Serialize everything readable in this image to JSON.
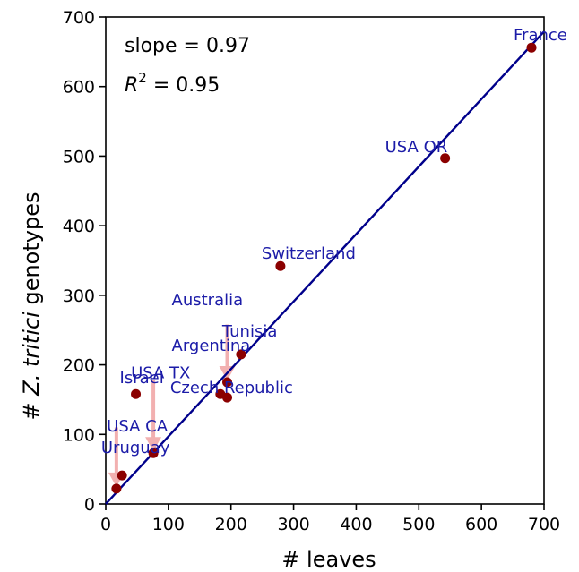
{
  "chart_data": {
    "type": "scatter",
    "title": "",
    "xlabel": "# leaves",
    "ylabel_prefix": "# ",
    "ylabel_italic": "Z. tritici",
    "ylabel_suffix": " genotypes",
    "xlim": [
      0,
      700
    ],
    "ylim": [
      0,
      700
    ],
    "xticks": [
      "0",
      "100",
      "200",
      "300",
      "400",
      "500",
      "600",
      "700"
    ],
    "yticks": [
      "0",
      "100",
      "200",
      "300",
      "400",
      "500",
      "600",
      "700"
    ],
    "grid": false,
    "annotations": {
      "slope_text": "slope = 0.97",
      "r2_prefix": "R",
      "r2_sup": "2",
      "r2_value": " = 0.95"
    },
    "fit_line": {
      "slope": 0.97,
      "intercept": 0,
      "color": "#00008B"
    },
    "point_color": "#8B0000",
    "label_color": "#1C1CA8",
    "arrow_color": "#F2B0B0",
    "points": [
      {
        "label": "France",
        "x": 680,
        "y": 656
      },
      {
        "label": "USA OR",
        "x": 542,
        "y": 497
      },
      {
        "label": "Switzerland",
        "x": 279,
        "y": 342
      },
      {
        "label": "Australia",
        "x": 194,
        "y": 175
      },
      {
        "label": "Argentina",
        "x": 194,
        "y": 153
      },
      {
        "label": "Tunisia",
        "x": 216,
        "y": 215
      },
      {
        "label": "Czech Republic",
        "x": 183,
        "y": 158
      },
      {
        "label": "Israel",
        "x": 48,
        "y": 158
      },
      {
        "label": "USA TX",
        "x": 76,
        "y": 73
      },
      {
        "label": "USA CA",
        "x": 26,
        "y": 41
      },
      {
        "label": "Uruguay",
        "x": 17,
        "y": 22
      }
    ],
    "arrows": [
      {
        "from": [
          76,
          178
        ],
        "to": [
          76,
          73
        ]
      },
      {
        "from": [
          194,
          258
        ],
        "to": [
          194,
          175
        ]
      },
      {
        "from": [
          17,
          110
        ],
        "to": [
          17,
          22
        ]
      }
    ]
  }
}
